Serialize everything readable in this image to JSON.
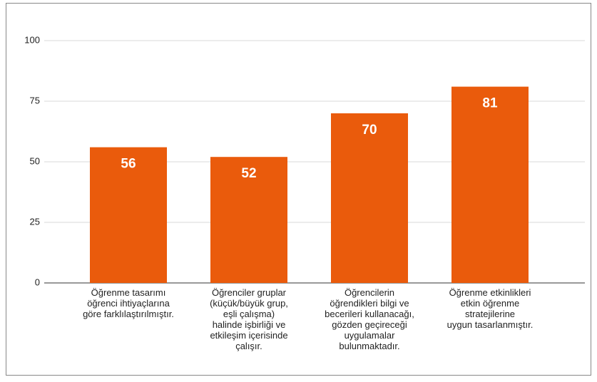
{
  "chart_data": {
    "type": "bar",
    "categories": [
      [
        "Öğrenme tasarımı",
        "öğrenci ihtiyaçlarına",
        "göre farklılaştırılmıştır."
      ],
      [
        "Öğrenciler gruplar",
        "(küçük/büyük grup,",
        "eşli çalışma)",
        "halinde işbirliği ve",
        "etkileşim içerisinde",
        "çalışır."
      ],
      [
        "Öğrencilerin",
        "öğrendikleri bilgi ve",
        "becerileri kullanacağı,",
        "gözden geçireceği",
        "uygulamalar",
        "bulunmaktadır."
      ],
      [
        "Öğrenme etkinlikleri",
        "etkin öğrenme",
        "stratejilerine",
        "uygun tasarlanmıştır."
      ]
    ],
    "values": [
      56,
      52,
      70,
      81
    ],
    "color": "#ea5b0c",
    "ylim": [
      0,
      100
    ],
    "yticks": [
      0,
      25,
      50,
      75,
      100
    ],
    "grid": true
  }
}
